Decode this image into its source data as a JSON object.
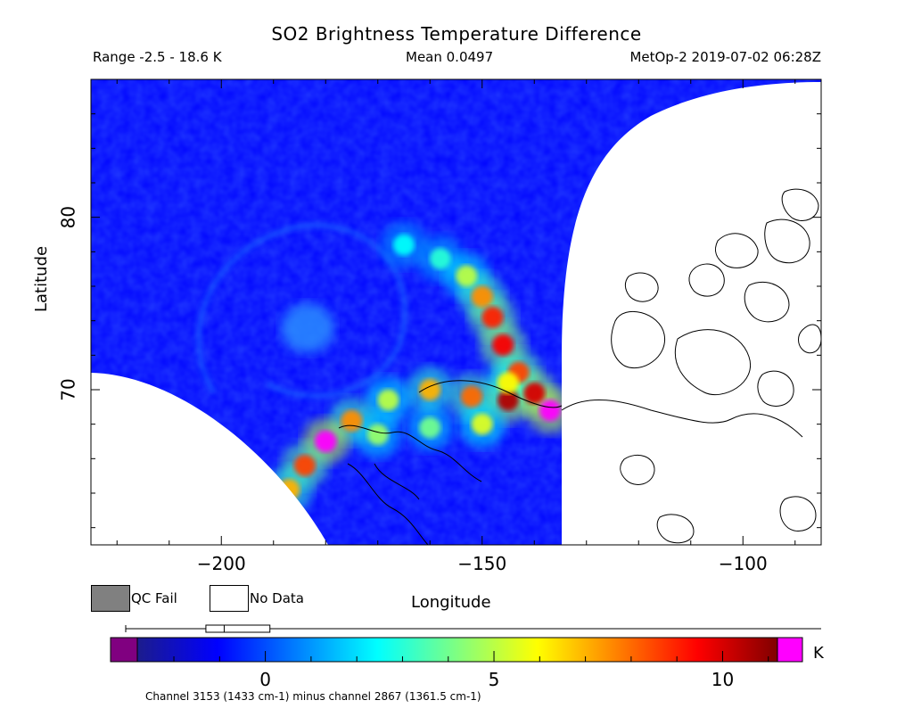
{
  "header": {
    "title": "SO2 Brightness Temperature Difference",
    "range_text": "Range -2.5 - 18.6 K",
    "mean_text": "Mean 0.0497",
    "satellite_text": "MetOp-2 2019-07-02 06:28Z"
  },
  "legend": {
    "qc_fail_label": "QC Fail",
    "no_data_label": "No Data",
    "qc_fail_color": "#808080",
    "no_data_color": "#ffffff"
  },
  "colorbar": {
    "min": -2.8,
    "max": 11.2,
    "unit_label": "K",
    "tick_values": [
      0,
      5,
      10
    ],
    "tick_labels": [
      "0",
      "5",
      "10"
    ],
    "under_color": "#800080",
    "over_color": "#ff00ff",
    "boxplot": {
      "whisker_low": -2.5,
      "q1": -1.3,
      "median": -0.9,
      "q3": 0.1,
      "whisker_high": 18.6
    }
  },
  "footer_text": "Channel 3153 (1433 cm-1) minus channel 2867 (1361.5 cm-1)",
  "chart_data": {
    "type": "heatmap",
    "title": "SO2 Brightness Temperature Difference",
    "xlabel": "Longitude",
    "ylabel": "Latitude",
    "xlim": [
      -225,
      -85
    ],
    "ylim": [
      61,
      88
    ],
    "x_ticks": [
      -200,
      -150,
      -100
    ],
    "x_tick_labels": [
      "−200",
      "−150",
      "−100"
    ],
    "y_ticks": [
      70,
      80
    ],
    "y_tick_labels": [
      "70",
      "80"
    ],
    "colorscale": [
      "#1c1c8c",
      "#0000ff",
      "#0080ff",
      "#00ffff",
      "#80ff80",
      "#ffff00",
      "#ff8000",
      "#ff0000",
      "#800000"
    ],
    "value_range": [
      -2.8,
      11.2
    ],
    "background_value": -1.0,
    "plume_points": [
      {
        "lon": -165,
        "lat": 78.4,
        "value": 2.5
      },
      {
        "lon": -158,
        "lat": 77.6,
        "value": 3.0
      },
      {
        "lon": -153,
        "lat": 76.6,
        "value": 5.0
      },
      {
        "lon": -150,
        "lat": 75.4,
        "value": 7.5
      },
      {
        "lon": -148,
        "lat": 74.2,
        "value": 9.0
      },
      {
        "lon": -146,
        "lat": 72.6,
        "value": 9.5
      },
      {
        "lon": -143,
        "lat": 71.0,
        "value": 8.5
      },
      {
        "lon": -140,
        "lat": 69.8,
        "value": 10.0
      },
      {
        "lon": -137,
        "lat": 68.8,
        "value": 11.5
      },
      {
        "lon": -145,
        "lat": 69.4,
        "value": 10.5
      },
      {
        "lon": -152,
        "lat": 69.6,
        "value": 8.0
      },
      {
        "lon": -160,
        "lat": 70.0,
        "value": 7.0
      },
      {
        "lon": -168,
        "lat": 69.4,
        "value": 5.0
      },
      {
        "lon": -175,
        "lat": 68.2,
        "value": 7.5
      },
      {
        "lon": -180,
        "lat": 67.0,
        "value": 11.5
      },
      {
        "lon": -184,
        "lat": 65.6,
        "value": 8.5
      },
      {
        "lon": -187,
        "lat": 64.2,
        "value": 7.0
      },
      {
        "lon": -170,
        "lat": 67.4,
        "value": 4.5
      },
      {
        "lon": -160,
        "lat": 67.8,
        "value": 4.0
      },
      {
        "lon": -150,
        "lat": 68.0,
        "value": 5.5
      },
      {
        "lon": -145,
        "lat": 70.4,
        "value": 6.0
      }
    ],
    "secondary_max": {
      "lon": -201,
      "lat": 74.6,
      "value": 2.5
    },
    "no_data_regions": [
      "lower-left swath edge",
      "right swath gap"
    ]
  }
}
